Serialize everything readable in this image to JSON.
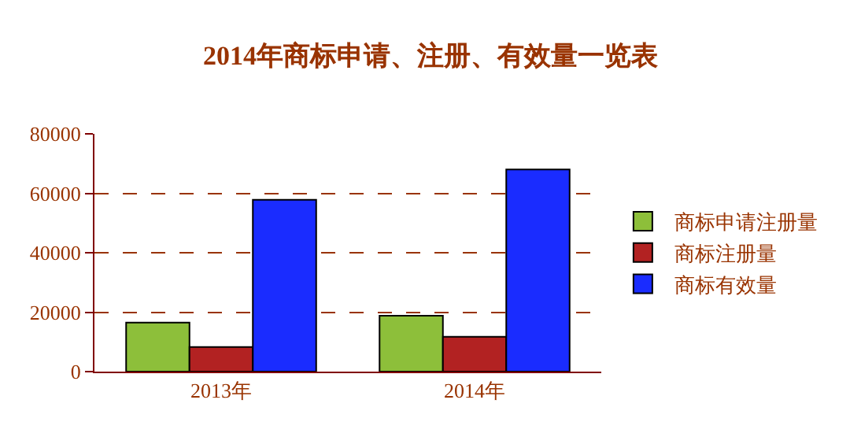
{
  "chart_data": {
    "type": "bar",
    "title": "2014年商标申请、注册、有效量一览表",
    "categories": [
      "2013年",
      "2014年"
    ],
    "series": [
      {
        "name": "商标申请注册量",
        "color": "#8dbf3a",
        "values": [
          16500,
          18800
        ]
      },
      {
        "name": "商标注册量",
        "color": "#b22222",
        "values": [
          8300,
          11700
        ]
      },
      {
        "name": "商标有效量",
        "color": "#1a2cff",
        "values": [
          57800,
          68000
        ]
      }
    ],
    "ylim": [
      0,
      80000
    ],
    "yticks": [
      0,
      20000,
      40000,
      60000,
      80000
    ],
    "grid": "y",
    "legend": "right"
  }
}
